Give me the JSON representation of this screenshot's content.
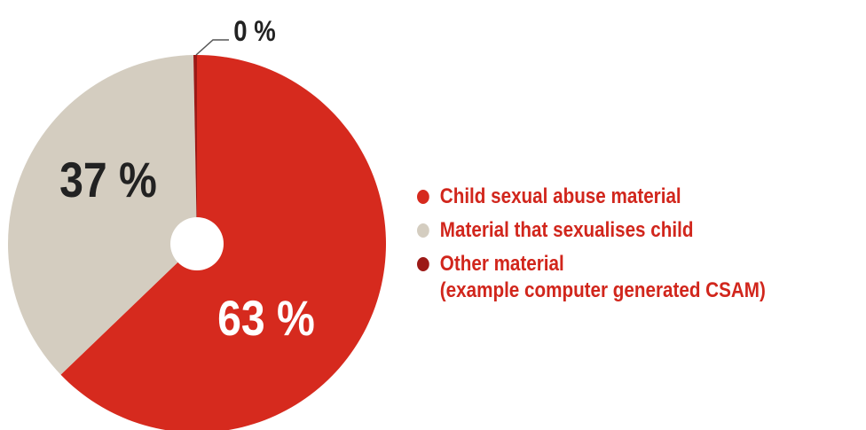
{
  "chart_data": {
    "type": "pie",
    "categories": [
      "Child sexual abuse material",
      "Material that sexualises child",
      "Other material"
    ],
    "values": [
      63,
      37,
      0.3
    ],
    "data_labels": [
      "63 %",
      "37 %",
      "0 %"
    ],
    "colors": [
      "#d62a1e",
      "#d4cdc0",
      "#9c1a17"
    ],
    "legend": {
      "placement": "right",
      "entries": [
        {
          "label": "Child sexual abuse material",
          "sublabel": ""
        },
        {
          "label": "Material that sexualises child",
          "sublabel": ""
        },
        {
          "label": "Other material",
          "sublabel": "(example computer generated CSAM)"
        }
      ]
    },
    "label_color": "#d1261c"
  }
}
